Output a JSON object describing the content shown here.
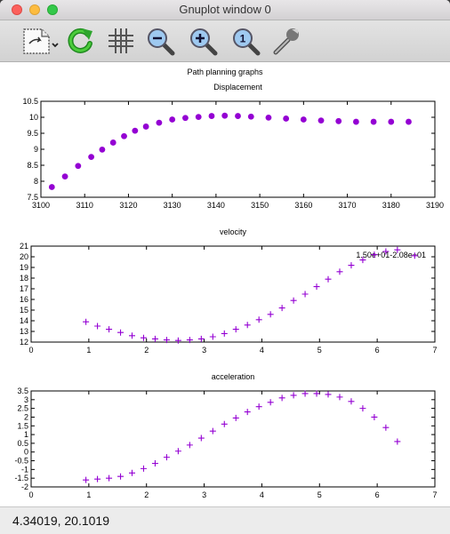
{
  "window": {
    "title": "Gnuplot window 0"
  },
  "toolbar": {
    "items": [
      {
        "name": "export-button",
        "icon": "document-export-icon"
      },
      {
        "name": "replot-button",
        "icon": "refresh-icon"
      },
      {
        "name": "grid-button",
        "icon": "grid-icon"
      },
      {
        "name": "zoom-out-button",
        "icon": "zoom-out-icon"
      },
      {
        "name": "zoom-in-button",
        "icon": "zoom-in-icon"
      },
      {
        "name": "zoom-reset-button",
        "icon": "zoom-reset-icon"
      },
      {
        "name": "settings-button",
        "icon": "wrench-icon"
      }
    ]
  },
  "plot": {
    "main_title": "Path planning graphs"
  },
  "status": {
    "coords": "4.34019,  20.1019"
  },
  "colors": {
    "series": "#9400d3",
    "axis": "#000000"
  },
  "chart_data": [
    {
      "type": "scatter",
      "title": "Displacement",
      "marker": "circle",
      "xlim": [
        3100,
        3190
      ],
      "ylim": [
        7.5,
        10.5
      ],
      "xticks": [
        3100,
        3110,
        3120,
        3130,
        3140,
        3150,
        3160,
        3170,
        3180,
        3190
      ],
      "xtick_labels": [
        "3100",
        "3110",
        "3120",
        "3130",
        "3140",
        "3150",
        "3160",
        "3170",
        "3180",
        "3190"
      ],
      "yticks": [
        7.5,
        8,
        8.5,
        9,
        9.5,
        10,
        10.5
      ],
      "ytick_labels": [
        "7.5",
        "8",
        "8.5",
        "9",
        "9.5",
        "10",
        "10.5"
      ],
      "x": [
        3102.5,
        3105.5,
        3108.5,
        3111.5,
        3114,
        3116.5,
        3119,
        3121.5,
        3124,
        3127,
        3130,
        3133,
        3136,
        3139,
        3142,
        3145,
        3148,
        3152,
        3156,
        3160,
        3164,
        3168,
        3172,
        3176,
        3180,
        3184
      ],
      "y": [
        7.82,
        8.15,
        8.48,
        8.76,
        8.99,
        9.21,
        9.41,
        9.58,
        9.71,
        9.83,
        9.93,
        9.98,
        10.01,
        10.04,
        10.05,
        10.04,
        10.02,
        9.99,
        9.96,
        9.93,
        9.9,
        9.88,
        9.86,
        9.86,
        9.86,
        9.86
      ]
    },
    {
      "type": "scatter",
      "title": "velocity",
      "marker": "plus",
      "annotation": "1.50e+01-2.08e+01",
      "xlim": [
        0,
        7
      ],
      "ylim": [
        12,
        21
      ],
      "xticks": [
        0,
        1,
        2,
        3,
        4,
        5,
        6,
        7
      ],
      "xtick_labels": [
        "0",
        "1",
        "2",
        "3",
        "4",
        "5",
        "6",
        "7"
      ],
      "yticks": [
        12,
        13,
        14,
        15,
        16,
        17,
        18,
        19,
        20,
        21
      ],
      "ytick_labels": [
        "12",
        "13",
        "14",
        "15",
        "16",
        "17",
        "18",
        "19",
        "20",
        "21"
      ],
      "x": [
        0.95,
        1.15,
        1.35,
        1.55,
        1.75,
        1.95,
        2.15,
        2.35,
        2.55,
        2.75,
        2.95,
        3.15,
        3.35,
        3.55,
        3.75,
        3.95,
        4.15,
        4.35,
        4.55,
        4.75,
        4.95,
        5.15,
        5.35,
        5.55,
        5.75,
        5.95,
        6.15,
        6.35,
        6.65
      ],
      "y": [
        13.9,
        13.5,
        13.2,
        12.9,
        12.6,
        12.4,
        12.3,
        12.2,
        12.15,
        12.2,
        12.3,
        12.5,
        12.8,
        13.2,
        13.6,
        14.1,
        14.6,
        15.2,
        15.9,
        16.5,
        17.2,
        17.9,
        18.6,
        19.2,
        19.7,
        20.2,
        20.5,
        20.65,
        20.1
      ]
    },
    {
      "type": "scatter",
      "title": "acceleration",
      "marker": "plus",
      "xlim": [
        0,
        7
      ],
      "ylim": [
        -2,
        3.5
      ],
      "xticks": [
        0,
        1,
        2,
        3,
        4,
        5,
        6,
        7
      ],
      "xtick_labels": [
        "0",
        "1",
        "2",
        "3",
        "4",
        "5",
        "6",
        "7"
      ],
      "yticks": [
        -2,
        -1.5,
        -1,
        -0.5,
        0,
        0.5,
        1,
        1.5,
        2,
        2.5,
        3,
        3.5
      ],
      "ytick_labels": [
        "-2",
        "-1.5",
        "-1",
        "-0.5",
        "0",
        "0.5",
        "1",
        "1.5",
        "2",
        "2.5",
        "3",
        "3.5"
      ],
      "x": [
        0.95,
        1.15,
        1.35,
        1.55,
        1.75,
        1.95,
        2.15,
        2.35,
        2.55,
        2.75,
        2.95,
        3.15,
        3.35,
        3.55,
        3.75,
        3.95,
        4.15,
        4.35,
        4.55,
        4.75,
        4.95,
        5.15,
        5.35,
        5.55,
        5.75,
        5.95,
        6.15,
        6.35
      ],
      "y": [
        -1.6,
        -1.55,
        -1.5,
        -1.4,
        -1.2,
        -0.95,
        -0.65,
        -0.3,
        0.05,
        0.4,
        0.8,
        1.2,
        1.6,
        1.95,
        2.3,
        2.6,
        2.85,
        3.1,
        3.25,
        3.35,
        3.35,
        3.3,
        3.15,
        2.9,
        2.5,
        2.0,
        1.4,
        0.6
      ]
    }
  ]
}
